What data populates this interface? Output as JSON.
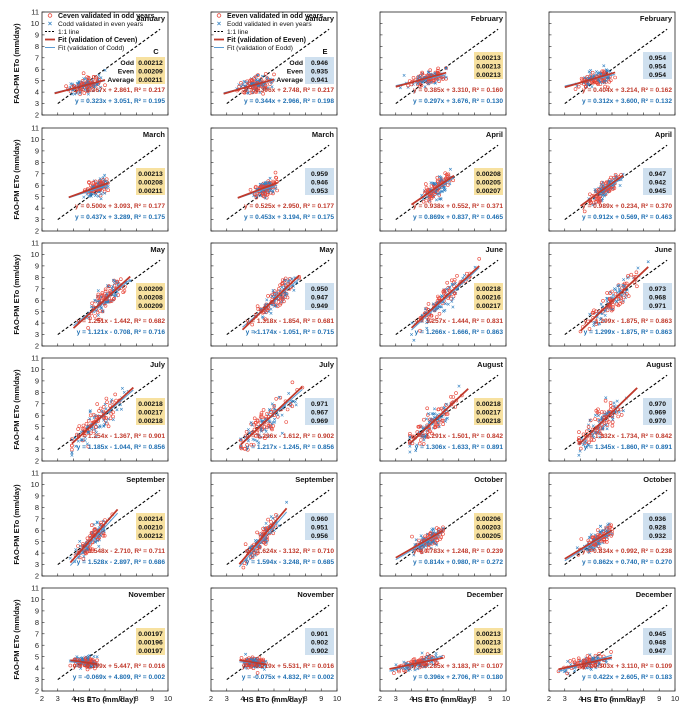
{
  "figure": {
    "xlabel": "HS ETo (mm/day)",
    "ylabel": "FAO-PM ETo (mm/day)",
    "colors": {
      "even_points": "#e8473a",
      "odd_points": "#2f7fc1",
      "fit_even": "#c0392b",
      "fit_odd": "#5a9bd4",
      "one_to_one": "#000000",
      "c_box": "#f7e1a0",
      "e_box": "#cfe0ef",
      "eq_red": "#c0392b",
      "eq_blue": "#1f6fb2"
    }
  },
  "legend": {
    "even_points": "Ceven validated in odd years",
    "odd_points": "Codd validated in even years",
    "one_to_one": "1:1 line",
    "fit_even": "Fit (validation of Ceven)",
    "fit_odd": "Fit (validation of Codd)"
  },
  "legend_e": {
    "even_points": "Eeven validated in odd years",
    "odd_points": "Eodd validated in even years",
    "one_to_one": "1:1 line",
    "fit_even": "Fit (validation of Eeven)",
    "fit_odd": "Fit (validation of Eodd)"
  },
  "stat_row_labels": [
    "Odd",
    "Even",
    "Average"
  ],
  "chart_data": [
    {
      "type": "scatter",
      "title": "January",
      "coef": "C",
      "stats": [
        "0.00212",
        "0.00209",
        "0.00211"
      ],
      "eq_even": "y = 0.367x + 2.861, R² = 0.217",
      "eq_odd": "y = 0.323x + 3.051, R² = 0.195",
      "fit_even": {
        "slope": 0.367,
        "intercept": 2.861
      },
      "fit_odd": {
        "slope": 0.323,
        "intercept": 3.051
      },
      "center": [
        4.8,
        4.6
      ],
      "spread": [
        0.55,
        0.6
      ],
      "x_range": [
        2.8,
        6.0
      ],
      "xlim": [
        2,
        10
      ],
      "ylim": [
        2,
        11
      ]
    },
    {
      "type": "scatter",
      "title": "January",
      "coef": "E",
      "stats": [
        "0.946",
        "0.935",
        "0.941"
      ],
      "eq_even": "y = 0.396x + 2.748, R² = 0.217",
      "eq_odd": "y = 0.344x + 2.966, R² = 0.198",
      "fit_even": {
        "slope": 0.396,
        "intercept": 2.748
      },
      "fit_odd": {
        "slope": 0.344,
        "intercept": 2.966
      },
      "center": [
        4.8,
        4.6
      ],
      "spread": [
        0.55,
        0.6
      ],
      "x_range": [
        2.8,
        6.0
      ],
      "xlim": [
        2,
        10
      ],
      "ylim": [
        2,
        11
      ]
    },
    {
      "type": "scatter",
      "title": "February",
      "coef": "C",
      "stats": [
        "0.00213",
        "0.00213",
        "0.00213"
      ],
      "eq_even": "y = 0.385x + 3.310, R² = 0.160",
      "eq_odd": "y = 0.297x + 3.676, R² = 0.130",
      "fit_even": {
        "slope": 0.385,
        "intercept": 3.31
      },
      "fit_odd": {
        "slope": 0.297,
        "intercept": 3.676
      },
      "center": [
        5.0,
        5.3
      ],
      "spread": [
        0.55,
        0.6
      ],
      "x_range": [
        3.0,
        6.2
      ],
      "xlim": [
        2,
        10
      ],
      "ylim": [
        2,
        11
      ]
    },
    {
      "type": "scatter",
      "title": "February",
      "coef": "E",
      "stats": [
        "0.954",
        "0.954",
        "0.954"
      ],
      "eq_even": "y = 0.404x + 3.214, R² = 0.162",
      "eq_odd": "y = 0.312x + 3.600, R² = 0.132",
      "fit_even": {
        "slope": 0.404,
        "intercept": 3.214
      },
      "fit_odd": {
        "slope": 0.312,
        "intercept": 3.6
      },
      "center": [
        5.0,
        5.3
      ],
      "spread": [
        0.55,
        0.6
      ],
      "x_range": [
        3.0,
        6.2
      ],
      "xlim": [
        2,
        10
      ],
      "ylim": [
        2,
        11
      ]
    },
    {
      "type": "scatter",
      "title": "March",
      "coef": "C",
      "stats": [
        "0.00213",
        "0.00208",
        "0.00211"
      ],
      "eq_even": "y = 0.500x + 3.093, R² = 0.177",
      "eq_odd": "y = 0.437x + 3.289, R² = 0.175",
      "fit_even": {
        "slope": 0.5,
        "intercept": 3.093
      },
      "fit_odd": {
        "slope": 0.437,
        "intercept": 3.289
      },
      "center": [
        5.5,
        5.8
      ],
      "spread": [
        0.35,
        0.6
      ],
      "x_range": [
        3.7,
        6.2
      ],
      "xlim": [
        2,
        10
      ],
      "ylim": [
        2,
        11
      ]
    },
    {
      "type": "scatter",
      "title": "March",
      "coef": "E",
      "stats": [
        "0.959",
        "0.946",
        "0.953"
      ],
      "eq_even": "y = 0.525x + 2.950, R² = 0.177",
      "eq_odd": "y = 0.453x + 3.194, R² = 0.175",
      "fit_even": {
        "slope": 0.525,
        "intercept": 2.95
      },
      "fit_odd": {
        "slope": 0.453,
        "intercept": 3.194
      },
      "center": [
        5.5,
        5.8
      ],
      "spread": [
        0.35,
        0.6
      ],
      "x_range": [
        3.7,
        6.2
      ],
      "xlim": [
        2,
        10
      ],
      "ylim": [
        2,
        11
      ]
    },
    {
      "type": "scatter",
      "title": "April",
      "coef": "C",
      "stats": [
        "0.00208",
        "0.00205",
        "0.00207"
      ],
      "eq_even": "y = 0.938x + 0.552, R² = 0.371",
      "eq_odd": "y = 0.869x + 0.837, R² = 0.465",
      "fit_even": {
        "slope": 0.938,
        "intercept": 0.552
      },
      "fit_odd": {
        "slope": 0.869,
        "intercept": 0.837
      },
      "center": [
        5.6,
        6.1
      ],
      "spread": [
        0.5,
        0.75
      ],
      "x_range": [
        4.0,
        6.7
      ],
      "xlim": [
        2,
        10
      ],
      "ylim": [
        2,
        11
      ]
    },
    {
      "type": "scatter",
      "title": "April",
      "coef": "E",
      "stats": [
        "0.947",
        "0.942",
        "0.945"
      ],
      "eq_even": "y = 0.989x + 0.234, R² = 0.370",
      "eq_odd": "y = 0.912x + 0.569, R² = 0.463",
      "fit_even": {
        "slope": 0.989,
        "intercept": 0.234
      },
      "fit_odd": {
        "slope": 0.912,
        "intercept": 0.569
      },
      "center": [
        5.6,
        6.1
      ],
      "spread": [
        0.5,
        0.75
      ],
      "x_range": [
        4.0,
        6.7
      ],
      "xlim": [
        2,
        10
      ],
      "ylim": [
        2,
        11
      ]
    },
    {
      "type": "scatter",
      "title": "May",
      "coef": "C",
      "stats": [
        "0.00209",
        "0.00208",
        "0.00209"
      ],
      "eq_even": "y = 1.251x - 1.442, R² = 0.682",
      "eq_odd": "y = 1.121x - 0.708, R² = 0.716",
      "fit_even": {
        "slope": 1.251,
        "intercept": -1.442
      },
      "fit_odd": {
        "slope": 1.121,
        "intercept": -0.708
      },
      "center": [
        6.2,
        6.3
      ],
      "spread": [
        0.65,
        0.9
      ],
      "x_range": [
        4.0,
        7.6
      ],
      "xlim": [
        2,
        10
      ],
      "ylim": [
        2,
        11
      ]
    },
    {
      "type": "scatter",
      "title": "May",
      "coef": "E",
      "stats": [
        "0.950",
        "0.947",
        "0.949"
      ],
      "eq_even": "y = 1.318x - 1.854, R² = 0.681",
      "eq_odd": "y = 1.174x - 1.051, R² = 0.715",
      "fit_even": {
        "slope": 1.318,
        "intercept": -1.854
      },
      "fit_odd": {
        "slope": 1.174,
        "intercept": -1.051
      },
      "center": [
        6.2,
        6.3
      ],
      "spread": [
        0.65,
        0.9
      ],
      "x_range": [
        4.0,
        7.6
      ],
      "xlim": [
        2,
        10
      ],
      "ylim": [
        2,
        11
      ]
    },
    {
      "type": "scatter",
      "title": "June",
      "coef": "C",
      "stats": [
        "0.00218",
        "0.00216",
        "0.00217"
      ],
      "eq_even": "y = 1.257x - 1.444, R² = 0.831",
      "eq_odd": "y = 1.266x - 1.666, R² = 0.863",
      "fit_even": {
        "slope": 1.257,
        "intercept": -1.444
      },
      "fit_odd": {
        "slope": 1.266,
        "intercept": -1.666
      },
      "center": [
        6.0,
        6.0
      ],
      "spread": [
        0.8,
        1.0
      ],
      "x_range": [
        4.0,
        8.3
      ],
      "xlim": [
        2,
        10
      ],
      "ylim": [
        2,
        11
      ]
    },
    {
      "type": "scatter",
      "title": "June",
      "coef": "E",
      "stats": [
        "0.973",
        "0.968",
        "0.971"
      ],
      "eq_even": "y = 1.299x - 1.875, R² = 0.863",
      "eq_odd": "y = 1.299x - 1.875, R² = 0.863",
      "fit_even": {
        "slope": 1.299,
        "intercept": -1.875
      },
      "fit_odd": {
        "slope": 1.299,
        "intercept": -1.875
      },
      "center": [
        6.0,
        6.0
      ],
      "spread": [
        0.8,
        1.0
      ],
      "x_range": [
        4.0,
        8.3
      ],
      "xlim": [
        2,
        10
      ],
      "ylim": [
        2,
        11
      ]
    },
    {
      "type": "scatter",
      "title": "July",
      "coef": "C",
      "stats": [
        "0.00218",
        "0.00217",
        "0.00218"
      ],
      "eq_even": "y = 1.254x - 1.367, R² = 0.901",
      "eq_odd": "y = 1.185x - 1.044, R² = 0.856",
      "fit_even": {
        "slope": 1.254,
        "intercept": -1.367
      },
      "fit_odd": {
        "slope": 1.185,
        "intercept": -1.044
      },
      "center": [
        5.5,
        5.5
      ],
      "spread": [
        0.9,
        1.1
      ],
      "x_range": [
        3.9,
        7.8
      ],
      "xlim": [
        2,
        10
      ],
      "ylim": [
        2,
        11
      ]
    },
    {
      "type": "scatter",
      "title": "July",
      "coef": "E",
      "stats": [
        "0.971",
        "0.967",
        "0.969"
      ],
      "eq_even": "y = 1.296x - 1.612, R² = 0.902",
      "eq_odd": "y = 1.217x - 1.245, R² = 0.856",
      "fit_even": {
        "slope": 1.296,
        "intercept": -1.612
      },
      "fit_odd": {
        "slope": 1.217,
        "intercept": -1.245
      },
      "center": [
        5.5,
        5.5
      ],
      "spread": [
        0.9,
        1.1
      ],
      "x_range": [
        3.9,
        7.8
      ],
      "xlim": [
        2,
        10
      ],
      "ylim": [
        2,
        11
      ]
    },
    {
      "type": "scatter",
      "title": "August",
      "coef": "C",
      "stats": [
        "0.00218",
        "0.00217",
        "0.00218"
      ],
      "eq_even": "y = 1.291x - 1.501, R² = 0.842",
      "eq_odd": "y = 1.306x - 1.633, R² = 0.891",
      "fit_even": {
        "slope": 1.291,
        "intercept": -1.501
      },
      "fit_odd": {
        "slope": 1.306,
        "intercept": -1.633
      },
      "center": [
        5.3,
        5.2
      ],
      "spread": [
        0.8,
        1.0
      ],
      "x_range": [
        3.9,
        7.6
      ],
      "xlim": [
        2,
        10
      ],
      "ylim": [
        2,
        11
      ]
    },
    {
      "type": "scatter",
      "title": "August",
      "coef": "E",
      "stats": [
        "0.970",
        "0.969",
        "0.970"
      ],
      "eq_even": "y = 1.332x - 1.734, R² = 0.842",
      "eq_odd": "y = 1.345x - 1.860, R² = 0.891",
      "fit_even": {
        "slope": 1.332,
        "intercept": -1.734
      },
      "fit_odd": {
        "slope": 1.345,
        "intercept": -1.86
      },
      "center": [
        5.3,
        5.2
      ],
      "spread": [
        0.8,
        1.0
      ],
      "x_range": [
        3.9,
        7.6
      ],
      "xlim": [
        2,
        10
      ],
      "ylim": [
        2,
        11
      ]
    },
    {
      "type": "scatter",
      "title": "September",
      "coef": "C",
      "stats": [
        "0.00214",
        "0.00210",
        "0.00212"
      ],
      "eq_even": "y = 1.548x - 2.710, R² = 0.711",
      "eq_odd": "y = 1.528x - 2.897, R² = 0.686",
      "fit_even": {
        "slope": 1.548,
        "intercept": -2.71
      },
      "fit_odd": {
        "slope": 1.528,
        "intercept": -2.897
      },
      "center": [
        5.2,
        5.3
      ],
      "spread": [
        0.5,
        0.8
      ],
      "x_range": [
        3.8,
        6.8
      ],
      "xlim": [
        2,
        10
      ],
      "ylim": [
        2,
        11
      ]
    },
    {
      "type": "scatter",
      "title": "September",
      "coef": "E",
      "stats": [
        "0.960",
        "0.951",
        "0.956"
      ],
      "eq_even": "y = 1.624x - 3.132, R² = 0.710",
      "eq_odd": "y = 1.594x - 3.248, R² = 0.685",
      "fit_even": {
        "slope": 1.624,
        "intercept": -3.132
      },
      "fit_odd": {
        "slope": 1.594,
        "intercept": -3.248
      },
      "center": [
        5.2,
        5.3
      ],
      "spread": [
        0.5,
        0.8
      ],
      "x_range": [
        3.8,
        6.8
      ],
      "xlim": [
        2,
        10
      ],
      "ylim": [
        2,
        11
      ]
    },
    {
      "type": "scatter",
      "title": "October",
      "coef": "C",
      "stats": [
        "0.00206",
        "0.00203",
        "0.00205"
      ],
      "eq_even": "y = 0.783x + 1.248, R² = 0.239",
      "eq_odd": "y = 0.814x + 0.980, R² = 0.272",
      "fit_even": {
        "slope": 0.783,
        "intercept": 1.248
      },
      "fit_odd": {
        "slope": 0.814,
        "intercept": 0.98
      },
      "center": [
        5.1,
        5.2
      ],
      "spread": [
        0.5,
        0.7
      ],
      "x_range": [
        3.0,
        6.0
      ],
      "xlim": [
        2,
        10
      ],
      "ylim": [
        2,
        11
      ]
    },
    {
      "type": "scatter",
      "title": "October",
      "coef": "E",
      "stats": [
        "0.936",
        "0.928",
        "0.932"
      ],
      "eq_even": "y = 0.834x + 0.992, R² = 0.238",
      "eq_odd": "y = 0.862x + 0.740, R² = 0.270",
      "fit_even": {
        "slope": 0.834,
        "intercept": 0.992
      },
      "fit_odd": {
        "slope": 0.862,
        "intercept": 0.74
      },
      "center": [
        5.1,
        5.2
      ],
      "spread": [
        0.5,
        0.7
      ],
      "x_range": [
        3.0,
        6.0
      ],
      "xlim": [
        2,
        10
      ],
      "ylim": [
        2,
        11
      ]
    },
    {
      "type": "scatter",
      "title": "November",
      "coef": "C",
      "stats": [
        "0.00197",
        "0.00196",
        "0.00197"
      ],
      "eq_even": "y = -0.199x + 5.447, R² = 0.016",
      "eq_odd": "y = -0.069x + 4.809, R² = 0.002",
      "fit_even": {
        "slope": -0.199,
        "intercept": 5.447
      },
      "fit_odd": {
        "slope": -0.069,
        "intercept": 4.809
      },
      "center": [
        4.8,
        4.5
      ],
      "spread": [
        0.4,
        0.45
      ],
      "x_range": [
        3.8,
        5.5
      ],
      "xlim": [
        2,
        10
      ],
      "ylim": [
        2,
        11
      ]
    },
    {
      "type": "scatter",
      "title": "November",
      "coef": "E",
      "stats": [
        "0.901",
        "0.902",
        "0.902"
      ],
      "eq_even": "y = -0.219x + 5.531, R² = 0.016",
      "eq_odd": "y = -0.075x + 4.832, R² = 0.002",
      "fit_even": {
        "slope": -0.219,
        "intercept": 5.531
      },
      "fit_odd": {
        "slope": -0.075,
        "intercept": 4.832
      },
      "center": [
        4.8,
        4.5
      ],
      "spread": [
        0.4,
        0.45
      ],
      "x_range": [
        3.8,
        5.5
      ],
      "xlim": [
        2,
        10
      ],
      "ylim": [
        2,
        11
      ]
    },
    {
      "type": "scatter",
      "title": "December",
      "coef": "C",
      "stats": [
        "0.00213",
        "0.00213",
        "0.00213"
      ],
      "eq_even": "y = 0.285x + 3.183, R² = 0.107",
      "eq_odd": "y = 0.396x + 2.706, R² = 0.180",
      "fit_even": {
        "slope": 0.285,
        "intercept": 3.183
      },
      "fit_odd": {
        "slope": 0.396,
        "intercept": 2.706
      },
      "center": [
        4.4,
        4.4
      ],
      "spread": [
        0.7,
        0.45
      ],
      "x_range": [
        2.6,
        6.0
      ],
      "xlim": [
        2,
        10
      ],
      "ylim": [
        2,
        11
      ]
    },
    {
      "type": "scatter",
      "title": "December",
      "coef": "E",
      "stats": [
        "0.945",
        "0.948",
        "0.947"
      ],
      "eq_even": "y = 0.303x + 3.110, R² = 0.109",
      "eq_odd": "y = 0.422x + 2.605, R² = 0.183",
      "fit_even": {
        "slope": 0.303,
        "intercept": 3.11
      },
      "fit_odd": {
        "slope": 0.422,
        "intercept": 2.605
      },
      "center": [
        4.4,
        4.4
      ],
      "spread": [
        0.7,
        0.45
      ],
      "x_range": [
        2.6,
        6.0
      ],
      "xlim": [
        2,
        10
      ],
      "ylim": [
        2,
        11
      ]
    }
  ]
}
